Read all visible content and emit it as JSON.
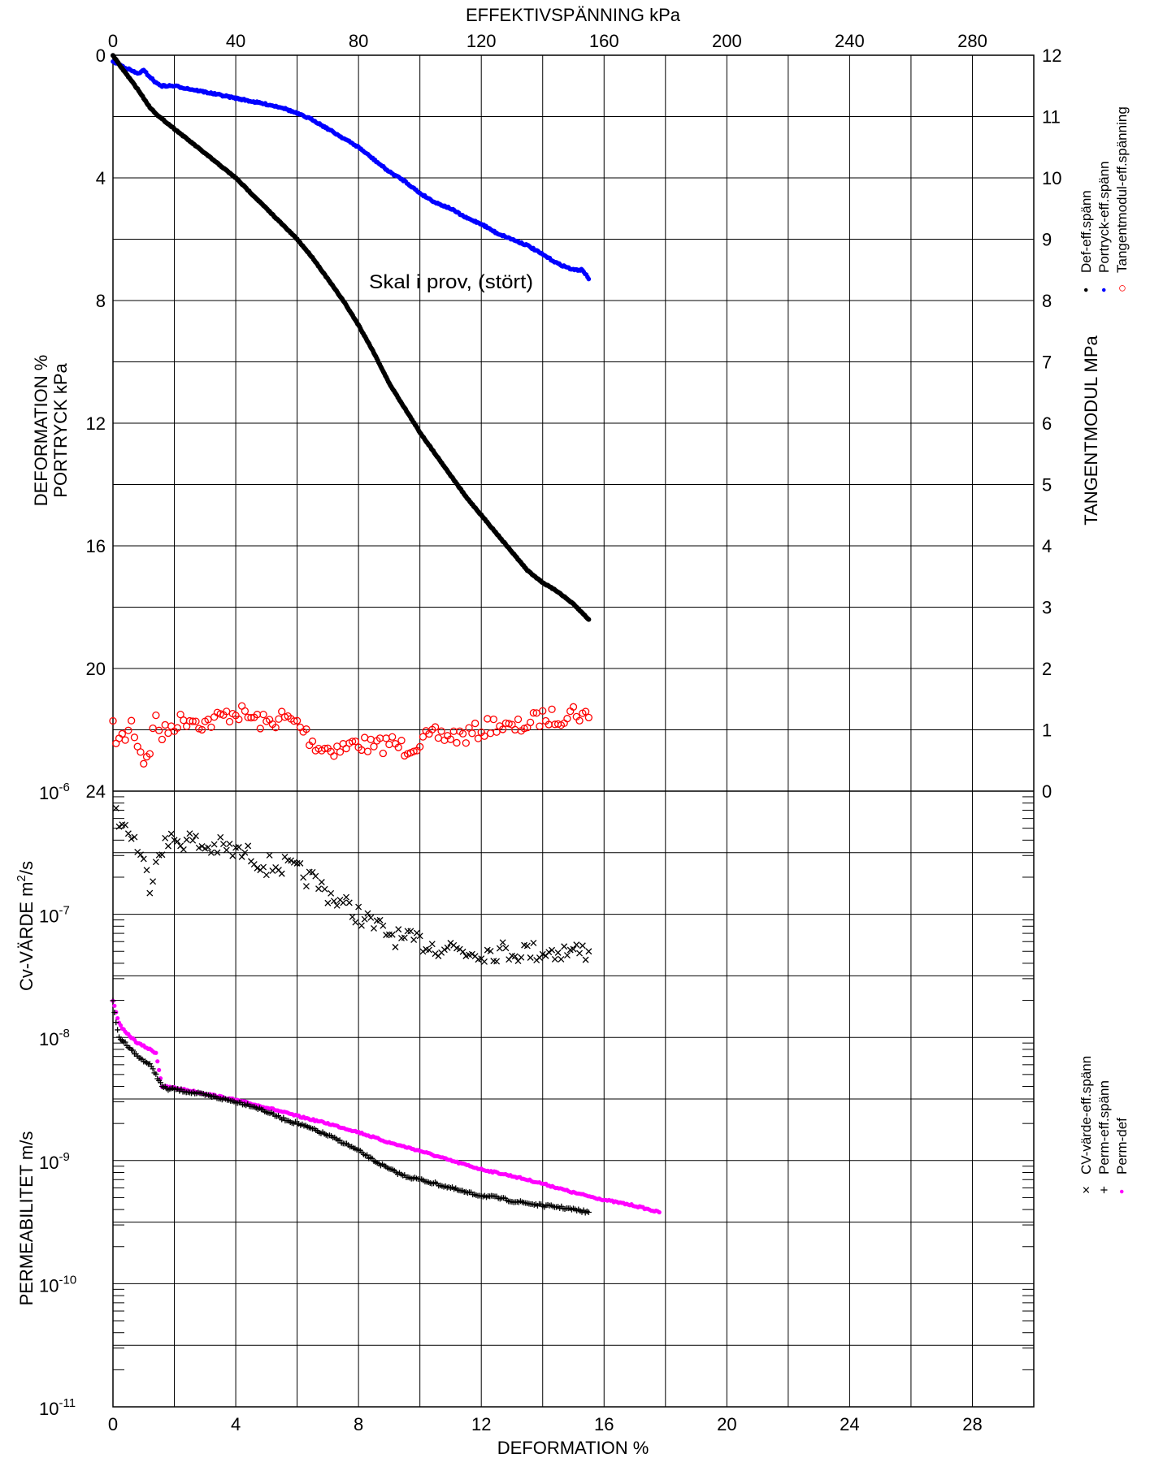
{
  "chart_data": {
    "type": "scatter",
    "top_axis": {
      "label": "EFFEKTIVSPÄNNING  kPa",
      "range": [
        0,
        300
      ],
      "ticks": [
        "0",
        "40",
        "80",
        "120",
        "160",
        "200",
        "240",
        "280"
      ]
    },
    "bottom_axis": {
      "label": "DEFORMATION  %",
      "range": [
        0,
        30
      ],
      "ticks": [
        "0",
        "4",
        "8",
        "12",
        "16",
        "20",
        "24",
        "28"
      ]
    },
    "upper_left_axis": {
      "label_line1": "DEFORMATION  %",
      "label_line2": "PORTRYCK  kPa",
      "range": [
        0,
        24
      ],
      "inverted": true,
      "ticks": [
        "0",
        "4",
        "8",
        "12",
        "16",
        "20",
        "24"
      ]
    },
    "right_axis": {
      "label": "TANGENTMODUL MPa",
      "range": [
        0,
        12
      ],
      "ticks": [
        "0",
        "1",
        "2",
        "3",
        "4",
        "5",
        "6",
        "7",
        "8",
        "9",
        "10",
        "11",
        "12"
      ]
    },
    "lower_left_axis": {
      "label_cv_prefix": "Cv-VÄRDE  m",
      "label_cv_exp": "2",
      "label_cv_suffix": "/s",
      "label_perm": "PERMEABILITET  m/s",
      "scale": "log",
      "range": [
        "1e-11",
        "1e-6"
      ],
      "tick_base": "10",
      "tick_exponents": [
        "-6",
        "-7",
        "-8",
        "-9",
        "-10",
        "-11"
      ]
    },
    "annotation": "Skal i prov, (stört)",
    "legend_top": [
      {
        "marker": "•",
        "color": "#000000",
        "label": "Def-eff.spänn"
      },
      {
        "marker": "•",
        "color": "#0000ff",
        "label": "Portryck-eff.spänn"
      },
      {
        "marker": "○",
        "color": "#ff0000",
        "label": "Tangentmodul-eff.spänning"
      }
    ],
    "legend_bottom": [
      {
        "marker": "×",
        "color": "#000000",
        "label": "CV-värde-eff.spänn"
      },
      {
        "marker": "+",
        "color": "#000000",
        "label": "Perm-eff.spänn"
      },
      {
        "marker": "•",
        "color": "#ff00ff",
        "label": "Perm-def"
      }
    ],
    "grid": true,
    "series": [
      {
        "id": "def",
        "color": "#000000",
        "x_stress_kPa": [
          0,
          2,
          5,
          8,
          10,
          12,
          15,
          20,
          25,
          30,
          35,
          40,
          45,
          50,
          55,
          60,
          65,
          70,
          75,
          80,
          85,
          90,
          95,
          100,
          105,
          110,
          115,
          120,
          125,
          130,
          135,
          140,
          145,
          150,
          155
        ],
        "y_deformation_pct": [
          0,
          0.3,
          0.7,
          1.1,
          1.4,
          1.7,
          2.0,
          2.4,
          2.8,
          3.2,
          3.6,
          4.0,
          4.5,
          5.0,
          5.5,
          6.0,
          6.6,
          7.3,
          8.0,
          8.8,
          9.7,
          10.7,
          11.5,
          12.3,
          13.0,
          13.7,
          14.4,
          15.0,
          15.6,
          16.2,
          16.8,
          17.2,
          17.5,
          17.9,
          18.4
        ]
      },
      {
        "id": "portryck",
        "color": "#0000ff",
        "x_stress_kPa": [
          0,
          4,
          8,
          10,
          12,
          14,
          16,
          18,
          20,
          25,
          30,
          35,
          40,
          45,
          50,
          55,
          60,
          65,
          70,
          75,
          80,
          85,
          90,
          95,
          100,
          105,
          110,
          115,
          120,
          125,
          130,
          135,
          140,
          145,
          150,
          153,
          155
        ],
        "y_pore_pressure_kPa": [
          0.2,
          0.4,
          0.6,
          0.5,
          0.7,
          0.9,
          1.0,
          1.0,
          1.0,
          1.1,
          1.2,
          1.3,
          1.4,
          1.5,
          1.6,
          1.7,
          1.9,
          2.1,
          2.4,
          2.7,
          3.0,
          3.4,
          3.8,
          4.1,
          4.5,
          4.8,
          5.0,
          5.3,
          5.5,
          5.8,
          6.0,
          6.2,
          6.5,
          6.8,
          7.0,
          7.0,
          7.3
        ]
      },
      {
        "id": "tangentmodul",
        "color": "#ff0000",
        "x_stress_kPa": [
          0,
          2,
          4,
          6,
          8,
          10,
          12,
          14,
          16,
          18,
          20,
          25,
          30,
          35,
          40,
          45,
          50,
          55,
          60,
          62,
          65,
          68,
          70,
          75,
          80,
          85,
          90,
          95,
          100,
          105,
          110,
          115,
          120,
          125,
          130,
          135,
          140,
          145,
          150,
          155
        ],
        "y_modulus_MPa": [
          1.0,
          0.8,
          0.9,
          1.1,
          0.8,
          0.5,
          0.7,
          1.2,
          0.9,
          1.0,
          1.1,
          1.2,
          1.1,
          1.2,
          1.3,
          1.2,
          1.1,
          1.2,
          1.1,
          1.0,
          0.8,
          0.7,
          0.7,
          0.7,
          0.8,
          0.7,
          0.8,
          0.7,
          0.8,
          0.9,
          0.9,
          0.9,
          1.0,
          1.1,
          1.0,
          1.1,
          1.2,
          1.2,
          1.3,
          1.2
        ]
      },
      {
        "id": "cv",
        "color": "#000000",
        "x_stress_kPa": [
          1,
          2,
          4,
          6,
          8,
          10,
          12,
          15,
          20,
          25,
          30,
          35,
          40,
          45,
          50,
          55,
          60,
          65,
          70,
          75,
          80,
          85,
          90,
          95,
          100,
          105,
          110,
          115,
          120,
          125,
          130,
          135,
          140,
          145,
          150,
          155
        ],
        "y_cv_m2s": [
          "7e-7",
          "6e-7",
          "5e-7",
          "4.5e-7",
          "3.5e-7",
          "2.5e-7",
          "1.8e-7",
          "3.5e-7",
          "4e-7",
          "4e-7",
          "3.5e-7",
          "3.5e-7",
          "3.2e-7",
          "3e-7",
          "2.5e-7",
          "2.5e-7",
          "2.2e-7",
          "1.9e-7",
          "1.5e-7",
          "1.2e-7",
          "1e-7",
          "8e-8",
          "7e-8",
          "6e-8",
          "6e-8",
          "5.5e-8",
          "5.5e-8",
          "5e-8",
          "5e-8",
          "5e-8",
          "5e-8",
          "5e-8",
          "5e-8",
          "5e-8",
          "5e-8",
          "5e-8"
        ]
      },
      {
        "id": "perm",
        "color": "#000000",
        "x_stress_kPa": [
          0,
          1,
          2,
          4,
          6,
          8,
          10,
          12,
          14,
          16,
          18,
          20,
          25,
          30,
          35,
          40,
          45,
          50,
          55,
          60,
          65,
          70,
          75,
          80,
          85,
          90,
          95,
          100,
          105,
          110,
          115,
          120,
          125,
          130,
          135,
          140,
          145,
          150,
          155
        ],
        "y_perm_ms": [
          "2e-8",
          "1.3e-8",
          "1e-8",
          "9e-9",
          "8e-9",
          "7e-9",
          "6.5e-9",
          "6e-9",
          "5e-9",
          "4e-9",
          "3.8e-9",
          "3.8e-9",
          "3.6e-9",
          "3.4e-9",
          "3.2e-9",
          "3e-9",
          "2.8e-9",
          "2.5e-9",
          "2.2e-9",
          "2e-9",
          "1.8e-9",
          "1.6e-9",
          "1.4e-9",
          "1.2e-9",
          "1e-9",
          "8.5e-10",
          "7.5e-10",
          "7e-10",
          "6.5e-10",
          "6e-10",
          "5.5e-10",
          "5.2e-10",
          "5e-10",
          "4.7e-10",
          "4.5e-10",
          "4.3e-10",
          "4.2e-10",
          "4e-10",
          "3.8e-10"
        ]
      },
      {
        "id": "perm_def",
        "color": "#ff00ff",
        "x_deformation_pct": [
          0,
          0.2,
          0.4,
          0.6,
          0.8,
          1.0,
          1.2,
          1.4,
          1.6,
          2,
          3,
          4,
          5,
          6,
          7,
          8,
          9,
          10,
          11,
          12,
          13,
          14,
          15,
          16,
          17,
          17.8
        ],
        "y_perm_ms": [
          "2e-8",
          "1.3e-8",
          "1.1e-8",
          "1e-8",
          "9e-9",
          "8.5e-9",
          "8e-9",
          "7.5e-9",
          "4e-9",
          "3.9e-9",
          "3.5e-9",
          "3.1e-9",
          "2.7e-9",
          "2.3e-9",
          "2e-9",
          "1.7e-9",
          "1.4e-9",
          "1.2e-9",
          "1e-9",
          "8.5e-10",
          "7.5e-10",
          "6.5e-10",
          "5.5e-10",
          "4.8e-10",
          "4.3e-10",
          "3.8e-10"
        ]
      }
    ]
  }
}
